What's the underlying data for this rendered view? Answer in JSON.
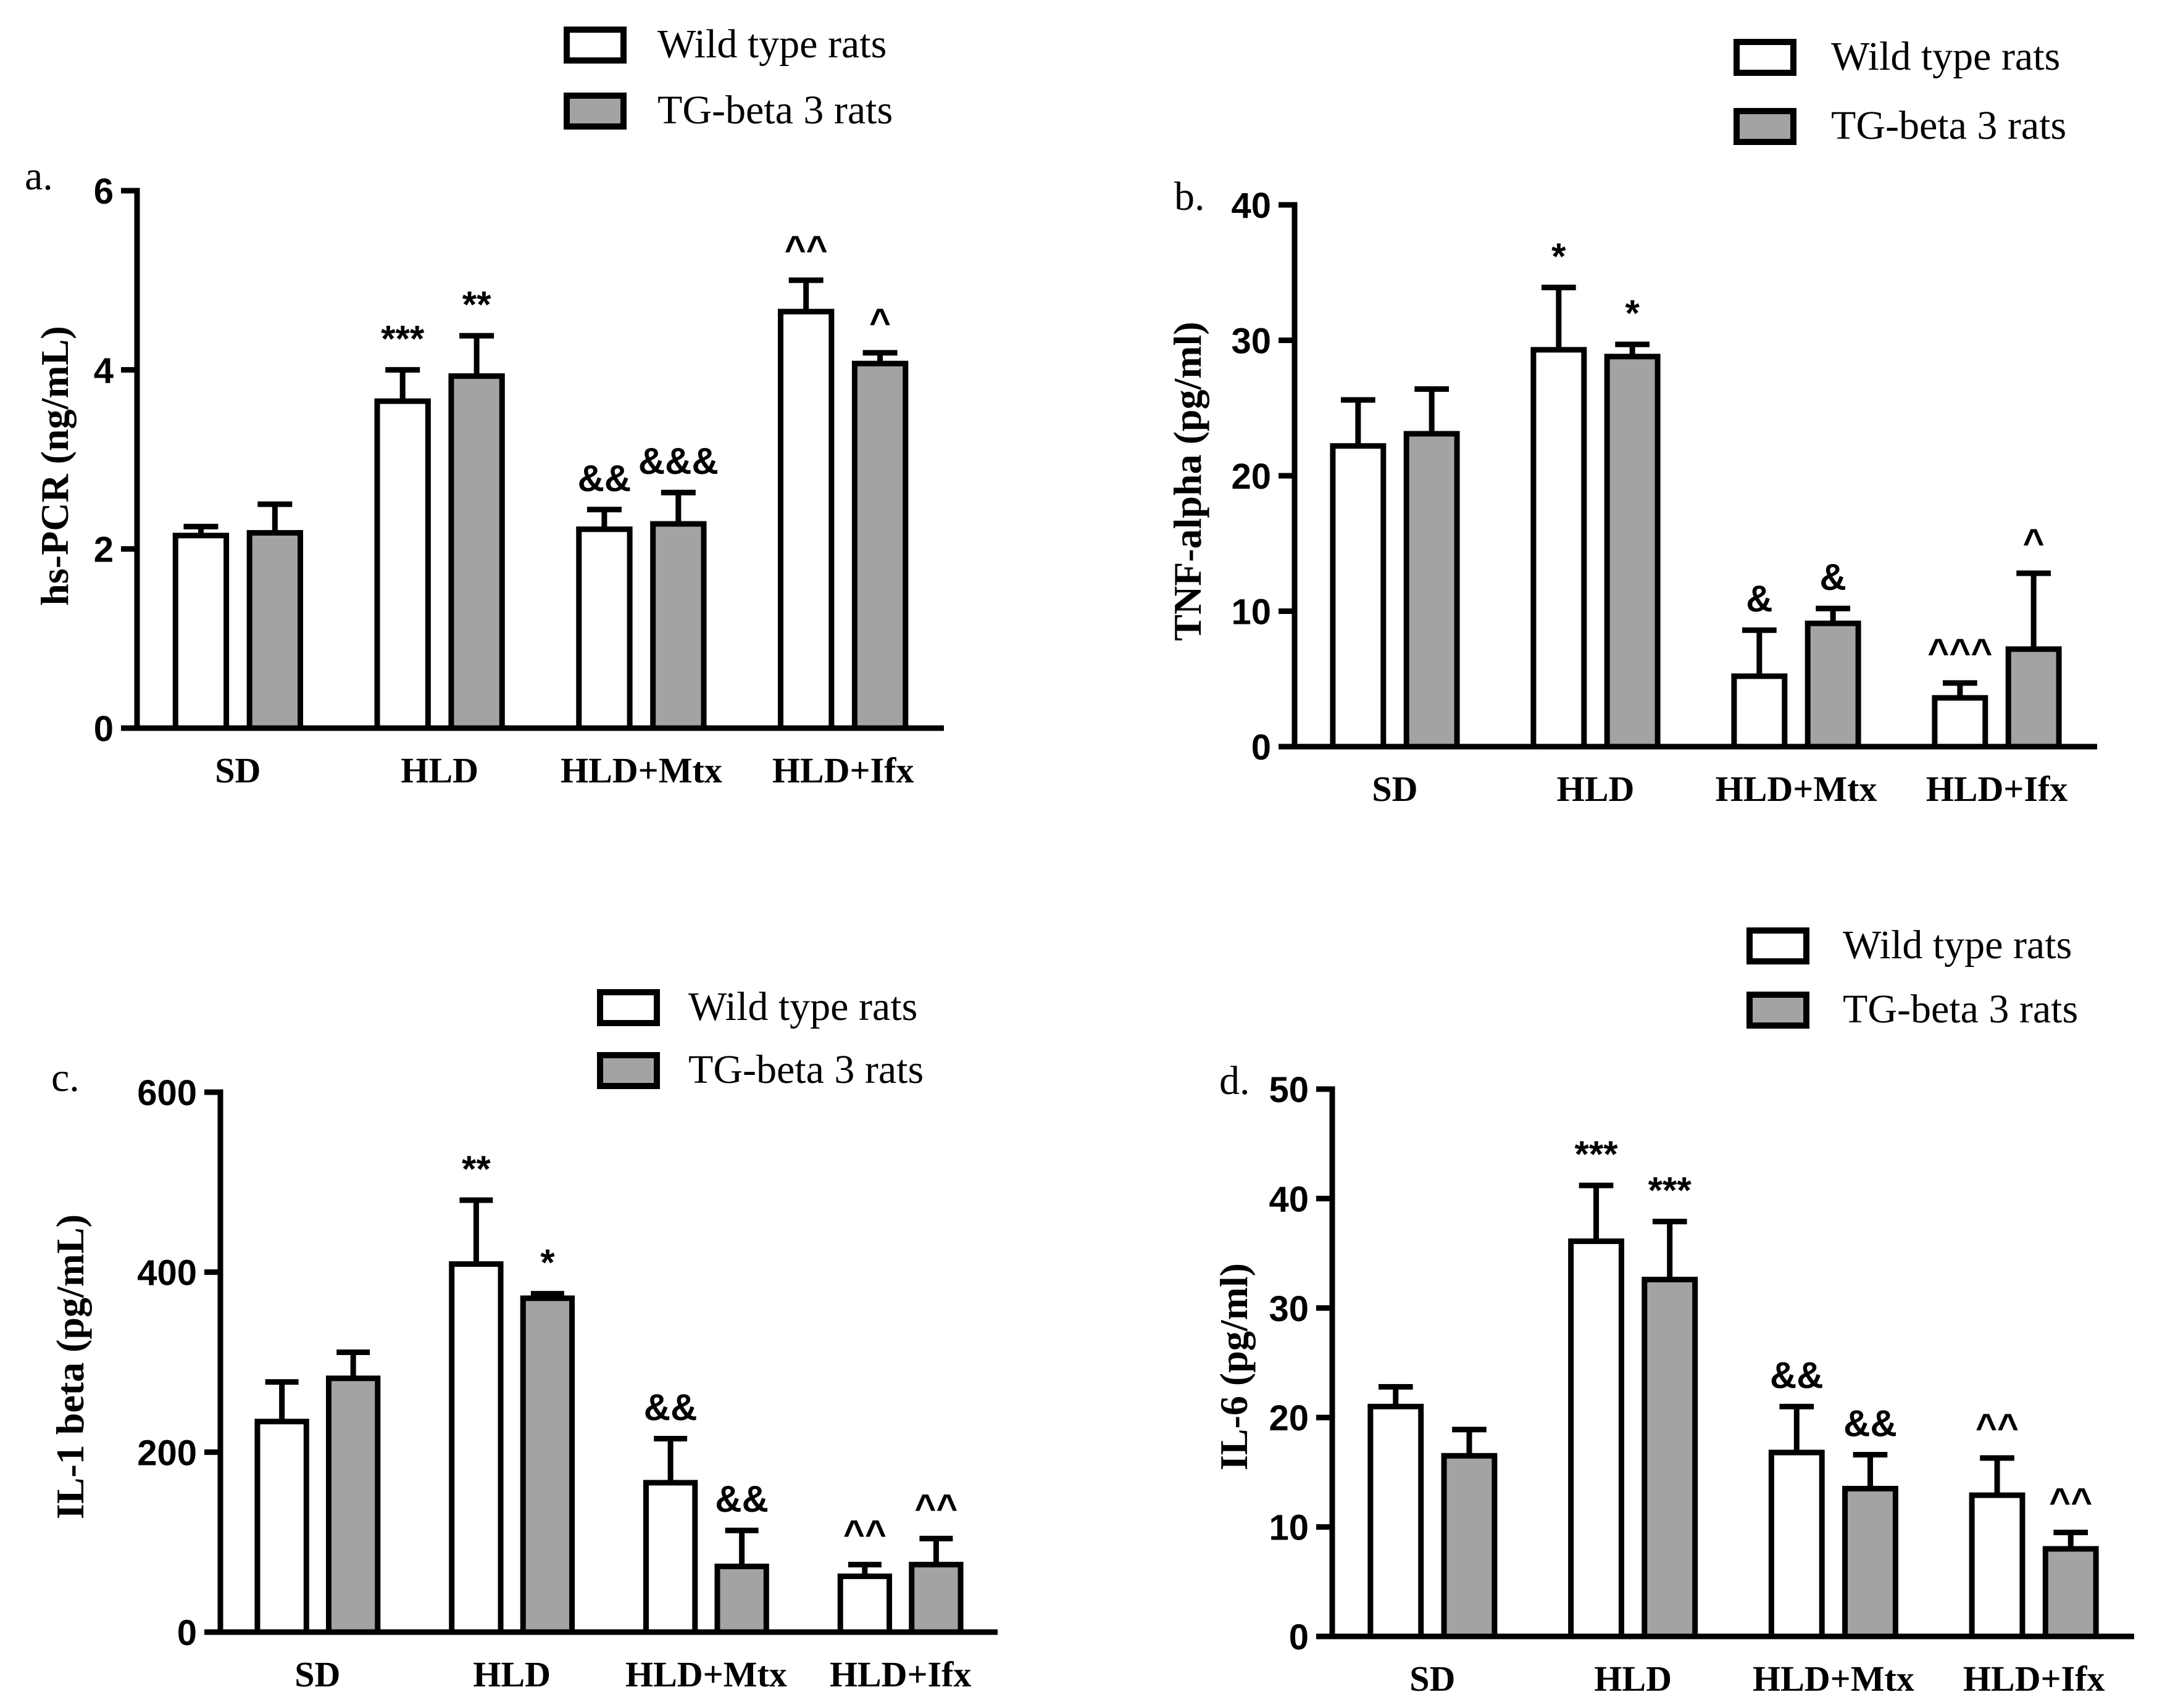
{
  "colors": {
    "wild": "#ffffff",
    "tg": "#a3a3a3",
    "stroke": "#000000"
  },
  "panels": [
    {
      "chart_data": {
        "type": "bar",
        "panel_label": "a.",
        "ylabel": "hs-PCR (ng/mL)",
        "ylim": [
          0,
          6
        ],
        "yticks": [
          0,
          2,
          4,
          6
        ],
        "yticklabels": [
          "0",
          "2",
          "4",
          "6"
        ],
        "categories": [
          "SD",
          "HLD",
          "HLD+Mtx",
          "HLD+Ifx"
        ],
        "legend": [
          "Wild type rats",
          "TG-beta 3 rats"
        ],
        "series": [
          {
            "name": "Wild type rats",
            "values": [
              2.15,
              3.65,
              2.22,
              4.65
            ],
            "errors": [
              0.1,
              0.35,
              0.22,
              0.35
            ],
            "annotations": [
              "",
              "***",
              "&&",
              "^^"
            ]
          },
          {
            "name": "TG-beta 3 rats",
            "values": [
              2.18,
              3.93,
              2.28,
              4.07
            ],
            "errors": [
              0.32,
              0.45,
              0.35,
              0.12
            ],
            "annotations": [
              "",
              "**",
              "&&&",
              "^"
            ]
          }
        ]
      }
    },
    {
      "chart_data": {
        "type": "bar",
        "panel_label": "b.",
        "ylabel": "TNF-alpha (pg/ml)",
        "ylim": [
          0,
          40
        ],
        "yticks": [
          0,
          10,
          20,
          30,
          40
        ],
        "yticklabels": [
          "0",
          "10",
          "20",
          "30",
          "40"
        ],
        "categories": [
          "SD",
          "HLD",
          "HLD+Mtx",
          "HLD+Ifx"
        ],
        "legend": [
          "Wild type rats",
          "TG-beta 3 rats"
        ],
        "series": [
          {
            "name": "Wild type rats",
            "values": [
              22.2,
              29.3,
              5.2,
              3.6
            ],
            "errors": [
              3.4,
              4.6,
              3.4,
              1.1
            ],
            "annotations": [
              "",
              "*",
              "&",
              "^^^"
            ]
          },
          {
            "name": "TG-beta 3 rats",
            "values": [
              23.1,
              28.8,
              9.1,
              7.2
            ],
            "errors": [
              3.3,
              0.9,
              1.1,
              5.6
            ],
            "annotations": [
              "",
              "*",
              "&",
              "^"
            ]
          }
        ]
      }
    },
    {
      "chart_data": {
        "type": "bar",
        "panel_label": "c.",
        "ylabel": "IL-1 beta (pg/mL)",
        "ylim": [
          0,
          600
        ],
        "yticks": [
          0,
          200,
          400,
          600
        ],
        "yticklabels": [
          "0",
          "200",
          "400",
          "600"
        ],
        "categories": [
          "SD",
          "HLD",
          "HLD+Mtx",
          "HLD+Ifx"
        ],
        "legend": [
          "Wild type rats",
          "TG-beta 3 rats"
        ],
        "series": [
          {
            "name": "Wild type rats",
            "values": [
              234,
              409,
              166,
              62
            ],
            "errors": [
              44,
              71,
              49,
              13
            ],
            "annotations": [
              "",
              "**",
              "&&",
              "^^"
            ]
          },
          {
            "name": "TG-beta 3 rats",
            "values": [
              282,
              371,
              73,
              75
            ],
            "errors": [
              29,
              5,
              40,
              29
            ],
            "annotations": [
              "",
              "*",
              "&&",
              "^^"
            ]
          }
        ]
      }
    },
    {
      "chart_data": {
        "type": "bar",
        "panel_label": "d.",
        "ylabel": "IL-6 (pg/ml)",
        "ylim": [
          0,
          50
        ],
        "yticks": [
          0,
          10,
          20,
          30,
          40,
          50
        ],
        "yticklabels": [
          "0",
          "10",
          "20",
          "30",
          "40",
          "50"
        ],
        "categories": [
          "SD",
          "HLD",
          "HLD+Mtx",
          "HLD+Ifx"
        ],
        "legend": [
          "Wild type rats",
          "TG-beta 3 rats"
        ],
        "series": [
          {
            "name": "Wild type rats",
            "values": [
              21.0,
              36.1,
              16.8,
              12.9
            ],
            "errors": [
              1.8,
              5.1,
              4.2,
              3.4
            ],
            "annotations": [
              "",
              "***",
              "&&",
              "^^"
            ]
          },
          {
            "name": "TG-beta 3 rats",
            "values": [
              16.5,
              32.6,
              13.5,
              8.0
            ],
            "errors": [
              2.4,
              5.3,
              3.1,
              1.5
            ],
            "annotations": [
              "",
              "***",
              "&&",
              "^^"
            ]
          }
        ]
      }
    }
  ]
}
